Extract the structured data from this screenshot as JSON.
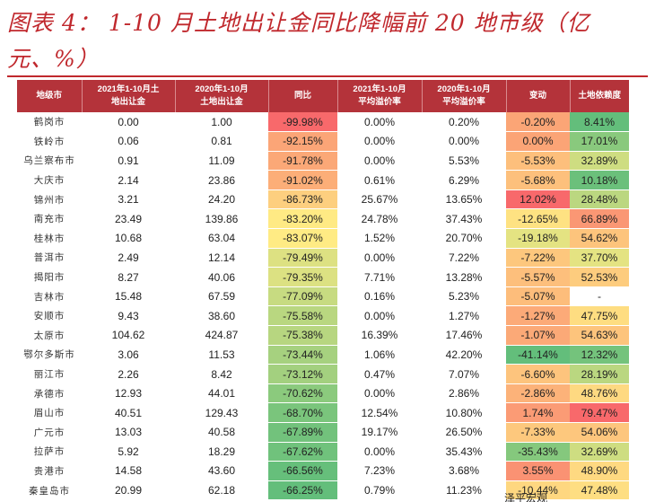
{
  "title_line1": "图表 4： 1-10 月土地出让金同比降幅前 20 地市级（亿",
  "title_line2": "元、%）",
  "columns": [
    "地级市",
    "2021年1-10月土\n地出让金",
    "2020年1-10月\n土地出让金",
    "同比",
    "2021年1-10月\n平均溢价率",
    "2020年1-10月\n平均溢价率",
    "变动",
    "土地依赖度"
  ],
  "rows": [
    {
      "city": "鹤岗市",
      "v2021": "0.00",
      "v2020": "1.00",
      "yoy": "-99.98%",
      "p2021": "0.00%",
      "p2020": "0.20%",
      "change": "-0.20%",
      "dep": "8.41%"
    },
    {
      "city": "铁岭市",
      "v2021": "0.06",
      "v2020": "0.81",
      "yoy": "-92.15%",
      "p2021": "0.00%",
      "p2020": "0.00%",
      "change": "0.00%",
      "dep": "17.01%"
    },
    {
      "city": "乌兰察布市",
      "v2021": "0.91",
      "v2020": "11.09",
      "yoy": "-91.78%",
      "p2021": "0.00%",
      "p2020": "5.53%",
      "change": "-5.53%",
      "dep": "32.89%"
    },
    {
      "city": "大庆市",
      "v2021": "2.14",
      "v2020": "23.86",
      "yoy": "-91.02%",
      "p2021": "0.61%",
      "p2020": "6.29%",
      "change": "-5.68%",
      "dep": "10.18%"
    },
    {
      "city": "锦州市",
      "v2021": "3.21",
      "v2020": "24.20",
      "yoy": "-86.73%",
      "p2021": "25.67%",
      "p2020": "13.65%",
      "change": "12.02%",
      "dep": "28.48%"
    },
    {
      "city": "南充市",
      "v2021": "23.49",
      "v2020": "139.86",
      "yoy": "-83.20%",
      "p2021": "24.78%",
      "p2020": "37.43%",
      "change": "-12.65%",
      "dep": "66.89%"
    },
    {
      "city": "桂林市",
      "v2021": "10.68",
      "v2020": "63.04",
      "yoy": "-83.07%",
      "p2021": "1.52%",
      "p2020": "20.70%",
      "change": "-19.18%",
      "dep": "54.62%"
    },
    {
      "city": "普洱市",
      "v2021": "2.49",
      "v2020": "12.14",
      "yoy": "-79.49%",
      "p2021": "0.00%",
      "p2020": "7.22%",
      "change": "-7.22%",
      "dep": "37.70%"
    },
    {
      "city": "揭阳市",
      "v2021": "8.27",
      "v2020": "40.06",
      "yoy": "-79.35%",
      "p2021": "7.71%",
      "p2020": "13.28%",
      "change": "-5.57%",
      "dep": "52.53%"
    },
    {
      "city": "吉林市",
      "v2021": "15.48",
      "v2020": "67.59",
      "yoy": "-77.09%",
      "p2021": "0.16%",
      "p2020": "5.23%",
      "change": "-5.07%",
      "dep": "-"
    },
    {
      "city": "安顺市",
      "v2021": "9.43",
      "v2020": "38.60",
      "yoy": "-75.58%",
      "p2021": "0.00%",
      "p2020": "1.27%",
      "change": "-1.27%",
      "dep": "47.75%"
    },
    {
      "city": "太原市",
      "v2021": "104.62",
      "v2020": "424.87",
      "yoy": "-75.38%",
      "p2021": "16.39%",
      "p2020": "17.46%",
      "change": "-1.07%",
      "dep": "54.63%"
    },
    {
      "city": "鄂尔多斯市",
      "v2021": "3.06",
      "v2020": "11.53",
      "yoy": "-73.44%",
      "p2021": "1.06%",
      "p2020": "42.20%",
      "change": "-41.14%",
      "dep": "12.32%"
    },
    {
      "city": "丽江市",
      "v2021": "2.26",
      "v2020": "8.42",
      "yoy": "-73.12%",
      "p2021": "0.47%",
      "p2020": "7.07%",
      "change": "-6.60%",
      "dep": "28.19%"
    },
    {
      "city": "承德市",
      "v2021": "12.93",
      "v2020": "44.01",
      "yoy": "-70.62%",
      "p2021": "0.00%",
      "p2020": "2.86%",
      "change": "-2.86%",
      "dep": "48.76%"
    },
    {
      "city": "眉山市",
      "v2021": "40.51",
      "v2020": "129.43",
      "yoy": "-68.70%",
      "p2021": "12.54%",
      "p2020": "10.80%",
      "change": "1.74%",
      "dep": "79.47%"
    },
    {
      "city": "广元市",
      "v2021": "13.03",
      "v2020": "40.58",
      "yoy": "-67.89%",
      "p2021": "19.17%",
      "p2020": "26.50%",
      "change": "-7.33%",
      "dep": "54.06%"
    },
    {
      "city": "拉萨市",
      "v2021": "5.92",
      "v2020": "18.29",
      "yoy": "-67.62%",
      "p2021": "0.00%",
      "p2020": "35.43%",
      "change": "-35.43%",
      "dep": "32.69%"
    },
    {
      "city": "贵港市",
      "v2021": "14.58",
      "v2020": "43.60",
      "yoy": "-66.56%",
      "p2021": "7.23%",
      "p2020": "3.68%",
      "change": "3.55%",
      "dep": "48.90%"
    },
    {
      "city": "秦皇岛市",
      "v2021": "20.99",
      "v2020": "62.18",
      "yoy": "-66.25%",
      "p2021": "0.79%",
      "p2020": "11.23%",
      "change": "-10.44%",
      "dep": "47.48%"
    }
  ],
  "colors": {
    "header": "#b4333a",
    "title": "#c0282d",
    "scale_red": "#f8696b",
    "scale_yellow": "#ffeb84",
    "scale_green": "#63be7b"
  },
  "watermark": "泽平宏观"
}
